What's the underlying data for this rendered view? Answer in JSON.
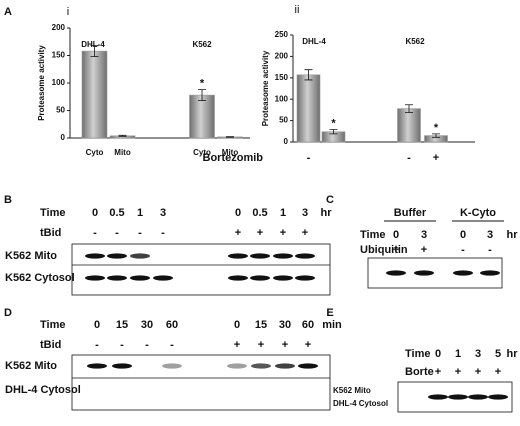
{
  "chart_data": [
    {
      "type": "bar",
      "panel": "A",
      "subpanel": "i",
      "ylabel": "Proteasome activity",
      "groups": [
        "DHL-4",
        "K562"
      ],
      "categories": [
        "Cyto",
        "Mito",
        "Cyto",
        "Mito"
      ],
      "values": [
        158,
        4,
        78,
        2
      ],
      "errors": [
        10,
        1,
        10,
        0.5
      ],
      "significance": [
        null,
        null,
        "*",
        null
      ],
      "color": "#9a9a9a",
      "ylim": [
        0,
        200
      ],
      "yticks": [
        0,
        50,
        100,
        150,
        200
      ]
    },
    {
      "type": "bar",
      "subpanel": "ii",
      "ylabel": "Proteasome activity",
      "xlabel": "Bortezomib",
      "groups": [
        "DHL-4",
        "K562"
      ],
      "categories": [
        "-",
        null,
        "-",
        "+"
      ],
      "values": [
        157,
        24,
        78,
        15
      ],
      "errors": [
        12,
        5,
        9,
        4
      ],
      "significance": [
        null,
        "*",
        null,
        "*"
      ],
      "color": "#9a9a9a",
      "ylim": [
        0,
        250
      ],
      "yticks": [
        0,
        50,
        100,
        150,
        200,
        250
      ]
    }
  ],
  "blots": {
    "B": {
      "panel": "B",
      "time_label": "Time",
      "times": [
        "0",
        "0.5",
        "1",
        "3",
        "0",
        "0.5",
        "1",
        "3"
      ],
      "unit": "hr",
      "treatment_label": "tBid",
      "treatments": [
        "-",
        "-",
        "-",
        "-",
        "+",
        "+",
        "+",
        "+"
      ],
      "rows": [
        "K562 Mito",
        "K562 Cytosol"
      ]
    },
    "C": {
      "panel": "C",
      "headers": [
        "Buffer",
        "K-Cyto"
      ],
      "time_label": "Time",
      "times": [
        "0",
        "3",
        "0",
        "3"
      ],
      "unit": "hr",
      "treatment_label": "Ubiquitin",
      "treatments": [
        "+",
        "+",
        "-",
        "-"
      ]
    },
    "D": {
      "panel": "D",
      "time_label": "Time",
      "times": [
        "0",
        "15",
        "30",
        "60",
        "0",
        "15",
        "30",
        "60"
      ],
      "unit": "min",
      "treatment_label": "tBid",
      "treatments": [
        "-",
        "-",
        "-",
        "-",
        "+",
        "+",
        "+",
        "+"
      ],
      "rows": [
        "K562 Mito",
        "DHL-4 Cytosol"
      ]
    },
    "E": {
      "panel": "E",
      "time_label": "Time",
      "times": [
        "0",
        "1",
        "3",
        "5"
      ],
      "unit": "hr",
      "treatment_label": "Borte",
      "treatments": [
        "+",
        "+",
        "+",
        "+"
      ],
      "rows": [
        "K562 Mito",
        "DHL-4 Cytosol"
      ]
    }
  }
}
